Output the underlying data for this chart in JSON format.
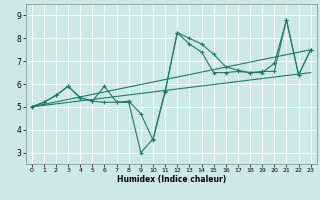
{
  "xlabel": "Humidex (Indice chaleur)",
  "bg_color": "#cde8e8",
  "grid_color": "#ffffff",
  "line_color": "#1a7a6e",
  "xlim": [
    -0.5,
    23.5
  ],
  "ylim": [
    2.5,
    9.5
  ],
  "xticks": [
    0,
    1,
    2,
    3,
    4,
    5,
    6,
    7,
    8,
    9,
    10,
    11,
    12,
    13,
    14,
    15,
    16,
    17,
    18,
    19,
    20,
    21,
    22,
    23
  ],
  "yticks": [
    3,
    4,
    5,
    6,
    7,
    8,
    9
  ],
  "lines": [
    {
      "x": [
        0,
        1,
        2,
        3,
        4,
        5,
        6,
        7,
        8,
        9,
        10,
        11,
        12,
        13,
        14,
        15,
        16,
        17,
        18,
        19,
        20,
        21,
        22,
        23
      ],
      "y": [
        5.0,
        5.2,
        5.5,
        5.9,
        5.4,
        5.25,
        5.2,
        5.2,
        5.25,
        4.7,
        3.55,
        5.65,
        8.25,
        8.0,
        7.75,
        7.3,
        6.75,
        6.6,
        6.5,
        6.5,
        6.9,
        8.8,
        6.4,
        7.5
      ],
      "marker": true
    },
    {
      "x": [
        0,
        1,
        2,
        3,
        4,
        5,
        6,
        7,
        8,
        9,
        10,
        11,
        12,
        13,
        14,
        15,
        16,
        17,
        18,
        19,
        20,
        21,
        22,
        23
      ],
      "y": [
        5.0,
        5.2,
        5.5,
        5.9,
        5.4,
        5.25,
        5.9,
        5.2,
        5.2,
        3.0,
        3.6,
        5.7,
        8.25,
        7.75,
        7.4,
        6.5,
        6.5,
        6.55,
        6.5,
        6.55,
        6.55,
        8.8,
        6.4,
        7.5
      ],
      "marker": true
    },
    {
      "x": [
        0,
        23
      ],
      "y": [
        5.0,
        6.5
      ],
      "marker": false
    },
    {
      "x": [
        0,
        23
      ],
      "y": [
        5.0,
        7.5
      ],
      "marker": false
    }
  ]
}
